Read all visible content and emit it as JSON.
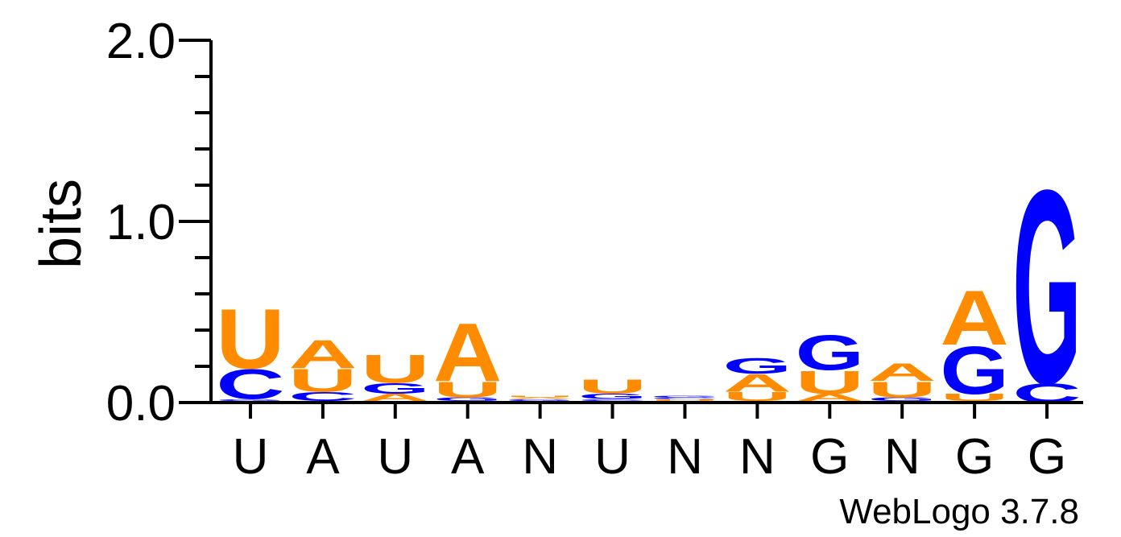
{
  "chart_data": {
    "type": "sequence-logo",
    "ylabel": "bits",
    "ylim": [
      0,
      2
    ],
    "y_ticks": [
      {
        "value": 0,
        "label": "0.0"
      },
      {
        "value": 1,
        "label": "1.0"
      },
      {
        "value": 2,
        "label": "2.0"
      }
    ],
    "x_labels": [
      "U",
      "A",
      "U",
      "A",
      "N",
      "U",
      "N",
      "N",
      "G",
      "N",
      "G",
      "G"
    ],
    "footer": "WebLogo 3.7.8",
    "colors": {
      "A": "#ff8c00",
      "U": "#ff8c00",
      "C": "#0000ff",
      "G": "#0000ff"
    },
    "stacks": [
      [
        {
          "letter": "A",
          "bits": 0.01
        },
        {
          "letter": "G",
          "bits": 0.01
        },
        {
          "letter": "C",
          "bits": 0.17
        },
        {
          "letter": "U",
          "bits": 0.34
        }
      ],
      [
        {
          "letter": "G",
          "bits": 0.01
        },
        {
          "letter": "C",
          "bits": 0.05
        },
        {
          "letter": "U",
          "bits": 0.13
        },
        {
          "letter": "A",
          "bits": 0.16
        }
      ],
      [
        {
          "letter": "C",
          "bits": 0.01
        },
        {
          "letter": "A",
          "bits": 0.04
        },
        {
          "letter": "G",
          "bits": 0.06
        },
        {
          "letter": "U",
          "bits": 0.16
        }
      ],
      [
        {
          "letter": "C",
          "bits": 0.01
        },
        {
          "letter": "G",
          "bits": 0.02
        },
        {
          "letter": "U",
          "bits": 0.09
        },
        {
          "letter": "A",
          "bits": 0.33
        }
      ],
      [
        {
          "letter": "C",
          "bits": 0.01
        },
        {
          "letter": "G",
          "bits": 0.01
        },
        {
          "letter": "A",
          "bits": 0.01
        },
        {
          "letter": "U",
          "bits": 0.01
        }
      ],
      [
        {
          "letter": "A",
          "bits": 0.01
        },
        {
          "letter": "C",
          "bits": 0.01
        },
        {
          "letter": "G",
          "bits": 0.03
        },
        {
          "letter": "U",
          "bits": 0.08
        }
      ],
      [
        {
          "letter": "A",
          "bits": 0.01
        },
        {
          "letter": "U",
          "bits": 0.01
        },
        {
          "letter": "C",
          "bits": 0.01
        },
        {
          "letter": "G",
          "bits": 0.01
        }
      ],
      [
        {
          "letter": "C",
          "bits": 0.01
        },
        {
          "letter": "U",
          "bits": 0.05
        },
        {
          "letter": "A",
          "bits": 0.1
        },
        {
          "letter": "G",
          "bits": 0.09
        }
      ],
      [
        {
          "letter": "C",
          "bits": 0.01
        },
        {
          "letter": "A",
          "bits": 0.04
        },
        {
          "letter": "U",
          "bits": 0.13
        },
        {
          "letter": "G",
          "bits": 0.2
        }
      ],
      [
        {
          "letter": "C",
          "bits": 0.01
        },
        {
          "letter": "G",
          "bits": 0.02
        },
        {
          "letter": "U",
          "bits": 0.09
        },
        {
          "letter": "A",
          "bits": 0.1
        }
      ],
      [
        {
          "letter": "C",
          "bits": 0.01
        },
        {
          "letter": "U",
          "bits": 0.04
        },
        {
          "letter": "G",
          "bits": 0.27
        },
        {
          "letter": "A",
          "bits": 0.31
        }
      ],
      [
        {
          "letter": "C",
          "bits": 0.11
        },
        {
          "letter": "G",
          "bits": 1.1
        }
      ]
    ]
  }
}
